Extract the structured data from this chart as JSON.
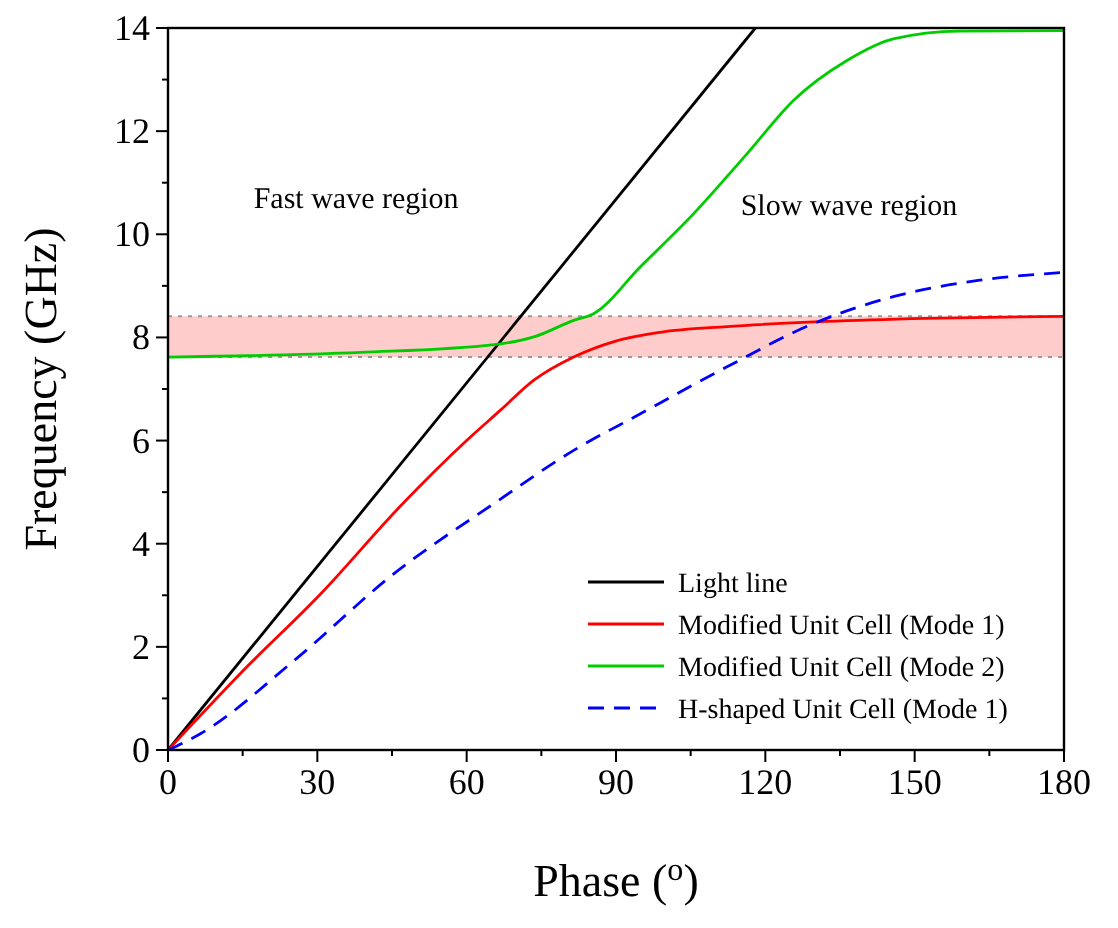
{
  "chart_data": {
    "type": "line",
    "xlabel": "Phase ($^{o}$)",
    "ylabel": "Frequency (GHz)",
    "xlim": [
      0,
      180
    ],
    "ylim": [
      0,
      14
    ],
    "xticks": [
      0,
      {
        "value": 15,
        "label": null
      },
      30,
      {
        "value": 45,
        "label": null
      },
      60,
      {
        "value": 75,
        "label": null
      },
      90,
      {
        "value": 105,
        "label": null
      },
      120,
      {
        "value": 135,
        "label": null
      },
      150,
      {
        "value": 165,
        "label": null
      },
      180
    ],
    "yticks": [
      0,
      {
        "value": 1,
        "label": null
      },
      2,
      {
        "value": 3,
        "label": null
      },
      4,
      {
        "value": 5,
        "label": null
      },
      6,
      {
        "value": 7,
        "label": null
      },
      8,
      {
        "value": 9,
        "label": null
      },
      10,
      {
        "value": 11,
        "label": null
      },
      12,
      {
        "value": 13,
        "label": null
      },
      14
    ],
    "legend": "bottom right",
    "grid": false,
    "bands": [
      {
        "axis": "y",
        "from": 7.62,
        "to": 8.41,
        "color": "#ffcccc"
      }
    ],
    "ref_lines": [
      {
        "axis": "y",
        "value": 7.62,
        "color": "#999999",
        "line_style": "dotted"
      },
      {
        "axis": "y",
        "value": 8.41,
        "color": "#999999",
        "line_style": "dotted"
      }
    ],
    "annotations": [
      "Fast wave region",
      "Slow wave region"
    ],
    "series": [
      {
        "name": "Light line",
        "color": "#000000",
        "x": [
          0,
          118
        ],
        "values": [
          0,
          14
        ]
      },
      {
        "name": "Modified Unit Cell (Mode 1)",
        "color": "#ff0000",
        "x": [
          0,
          14.6,
          30.7,
          46.7,
          60.1,
          66.8,
          73.5,
          81.5,
          89.6,
          98.9,
          112.3,
          132.2,
          152.3,
          180
        ],
        "values": [
          0,
          1.49,
          3.03,
          4.73,
          6.01,
          6.59,
          7.17,
          7.62,
          7.92,
          8.1,
          8.21,
          8.31,
          8.37,
          8.41
        ]
      },
      {
        "name": "Modified Unit Cell (Mode 2)",
        "color": "#00cc00",
        "x": [
          0,
          38.7,
          65.5,
          73.5,
          81.5,
          85.5,
          94.9,
          105.6,
          116.3,
          125.7,
          136.4,
          145.7,
          159.1,
          180
        ],
        "values": [
          7.62,
          7.71,
          7.86,
          8.01,
          8.33,
          8.46,
          9.37,
          10.4,
          11.56,
          12.6,
          13.37,
          13.79,
          13.94,
          13.95
        ]
      },
      {
        "name": "H-shaped Unit Cell (Mode 1)",
        "color": "#0000ff",
        "line_style": "dashed",
        "x": [
          0,
          6.6,
          25.4,
          45.4,
          65.5,
          81.5,
          94.9,
          112.3,
          129.7,
          145.7,
          163.1,
          180
        ],
        "values": [
          0,
          0.32,
          1.74,
          3.42,
          4.78,
          5.81,
          6.52,
          7.43,
          8.27,
          8.79,
          9.11,
          9.26
        ]
      }
    ]
  }
}
